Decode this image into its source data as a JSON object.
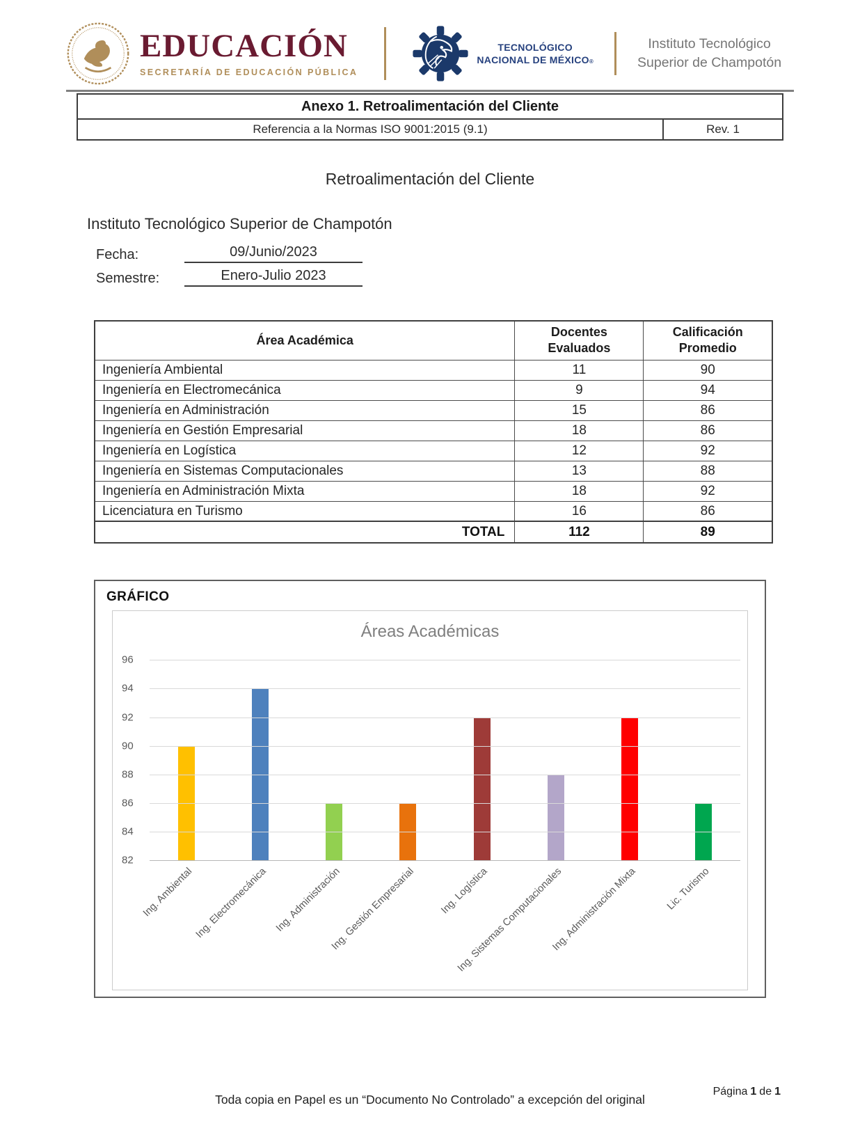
{
  "header": {
    "educacion_wordmark": "EDUCACIÓN",
    "educacion_subtitle": "SECRETARÍA DE EDUCACIÓN PÚBLICA",
    "tnm_line1": "TECNOLÓGICO",
    "tnm_line2": "NACIONAL DE MÉXICO",
    "tnm_registered": "®",
    "institute_line1": "Instituto Tecnológico",
    "institute_line2": "Superior de Champotón",
    "brand_colors": {
      "sep_maroon": "#6A1B31",
      "sep_gold": "#B08E5A",
      "tnm_navy": "#1B396A"
    }
  },
  "title_block": {
    "title": "Anexo 1. Retroalimentación del Cliente",
    "reference": "Referencia a la Normas ISO 9001:2015 (9.1)",
    "revision": "Rev. 1"
  },
  "document": {
    "heading": "Retroalimentación del Cliente",
    "institute": "Instituto Tecnológico Superior de Champotón",
    "fecha_label": "Fecha:",
    "fecha_value": "09/Junio/2023",
    "semestre_label": "Semestre:",
    "semestre_value": "Enero-Julio 2023"
  },
  "table": {
    "headers": [
      "Área Académica",
      "Docentes Evaluados",
      "Calificación Promedio"
    ],
    "rows": [
      {
        "area": "Ingeniería Ambiental",
        "docentes": "11",
        "calificacion": "90"
      },
      {
        "area": "Ingeniería en Electromecánica",
        "docentes": "9",
        "calificacion": "94"
      },
      {
        "area": "Ingeniería en Administración",
        "docentes": "15",
        "calificacion": "86"
      },
      {
        "area": "Ingeniería en Gestión Empresarial",
        "docentes": "18",
        "calificacion": "86"
      },
      {
        "area": "Ingeniería en Logística",
        "docentes": "12",
        "calificacion": "92"
      },
      {
        "area": "Ingeniería en Sistemas Computacionales",
        "docentes": "13",
        "calificacion": "88"
      },
      {
        "area": "Ingeniería en Administración Mixta",
        "docentes": "18",
        "calificacion": "92"
      },
      {
        "area": "Licenciatura en Turismo",
        "docentes": "16",
        "calificacion": "86"
      }
    ],
    "total_label": "TOTAL",
    "total_docentes": "112",
    "total_calificacion": "89"
  },
  "chart_section": {
    "label": "GRÁFICO"
  },
  "chart_data": {
    "type": "bar",
    "title": "Áreas Académicas",
    "categories": [
      "Ing. Ambiental",
      "Ing. Electromecánica",
      "Ing. Administración",
      "Ing. Gestión Empresarial",
      "Ing. Logística",
      "Ing. Sistemas Computacionales",
      "Ing. Administración Mixta",
      "Lic. Turismo"
    ],
    "values": [
      90,
      94,
      86,
      86,
      92,
      88,
      92,
      86
    ],
    "colors": [
      "#FFC000",
      "#4E81BD",
      "#92D050",
      "#E8720C",
      "#9E3B38",
      "#B3A6C9",
      "#FF0000",
      "#00A64F"
    ],
    "xlabel": "",
    "ylabel": "",
    "ylim": [
      82,
      96
    ],
    "ytick_step": 2,
    "grid": true,
    "legend_position": "none"
  },
  "footer": {
    "note": "Toda copia en Papel es un “Documento No Controlado” a excepción del original",
    "page_label": "Página",
    "page_number": "1",
    "page_of": "de",
    "page_total": "1"
  }
}
